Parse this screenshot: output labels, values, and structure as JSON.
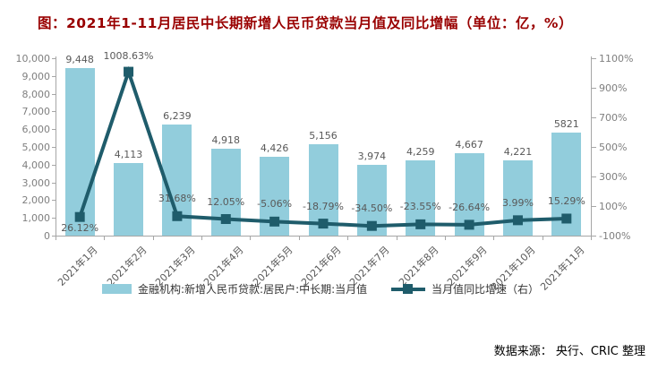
{
  "title": "图：2021年1-11月居民中长期新增人民币贷款当月值及同比增幅（单位：亿，%）",
  "source": "数据来源： 央行、CRIC 整理",
  "colors": {
    "background": "#FFFFFF",
    "bar": "#92CDDC",
    "line": "#1F5C6B",
    "title": "#990000",
    "axis_line": "#A6A6A6",
    "tick_text": "#7F7F7F",
    "data_label_text": "#595959",
    "legend_text": "#333333",
    "source_text": "#000000"
  },
  "legend": {
    "items": [
      {
        "type": "bar",
        "label": "金融机构:新增人民币贷款:居民户:中长期:当月值"
      },
      {
        "type": "line",
        "label": "当月值同比增速（右）"
      }
    ]
  },
  "chart_data": {
    "type": "bar+line combo",
    "title": "图：2021年1-11月居民中长期新增人民币贷款当月值及同比增幅（单位：亿，%）",
    "categories": [
      "2021年1月",
      "2021年2月",
      "2021年3月",
      "2021年4月",
      "2021年5月",
      "2021年6月",
      "2021年7月",
      "2021年8月",
      "2021年9月",
      "2021年10月",
      "2021年11月"
    ],
    "series": [
      {
        "name": "金融机构:新增人民币贷款:居民户:中长期:当月值",
        "type": "bar",
        "axis": "left",
        "unit": "亿",
        "values": [
          9448,
          4113,
          6239,
          4918,
          4426,
          5156,
          3974,
          4259,
          4667,
          4221,
          5821
        ],
        "data_labels": [
          "9,448",
          "4,113",
          "6,239",
          "4,918",
          "4,426",
          "5,156",
          "3,974",
          "4,259",
          "4,667",
          "4,221",
          "5821"
        ]
      },
      {
        "name": "当月值同比增速（右）",
        "type": "line",
        "axis": "right",
        "unit": "%",
        "values": [
          26.12,
          1008.63,
          31.68,
          12.05,
          -5.06,
          -18.79,
          -34.5,
          -23.55,
          -26.64,
          3.99,
          15.29
        ],
        "data_labels": [
          "26.12%",
          "1008.63%",
          "31.68%",
          "12.05%",
          "-5.06%",
          "-18.79%",
          "-34.50%",
          "-23.55%",
          "-26.64%",
          "3.99%",
          "15.29%"
        ]
      }
    ],
    "left_axis": {
      "min": 0,
      "max": 10000,
      "step": 1000,
      "tick_labels": [
        "0",
        "1,000",
        "2,000",
        "3,000",
        "4,000",
        "5,000",
        "6,000",
        "7,000",
        "8,000",
        "9,000",
        "10,000"
      ]
    },
    "right_axis": {
      "min": -100,
      "max": 1100,
      "step": 200,
      "tick_labels": [
        "-100%",
        "100%",
        "300%",
        "500%",
        "700%",
        "900%",
        "1100%"
      ]
    },
    "gridlines": false,
    "legend_position": "bottom"
  }
}
